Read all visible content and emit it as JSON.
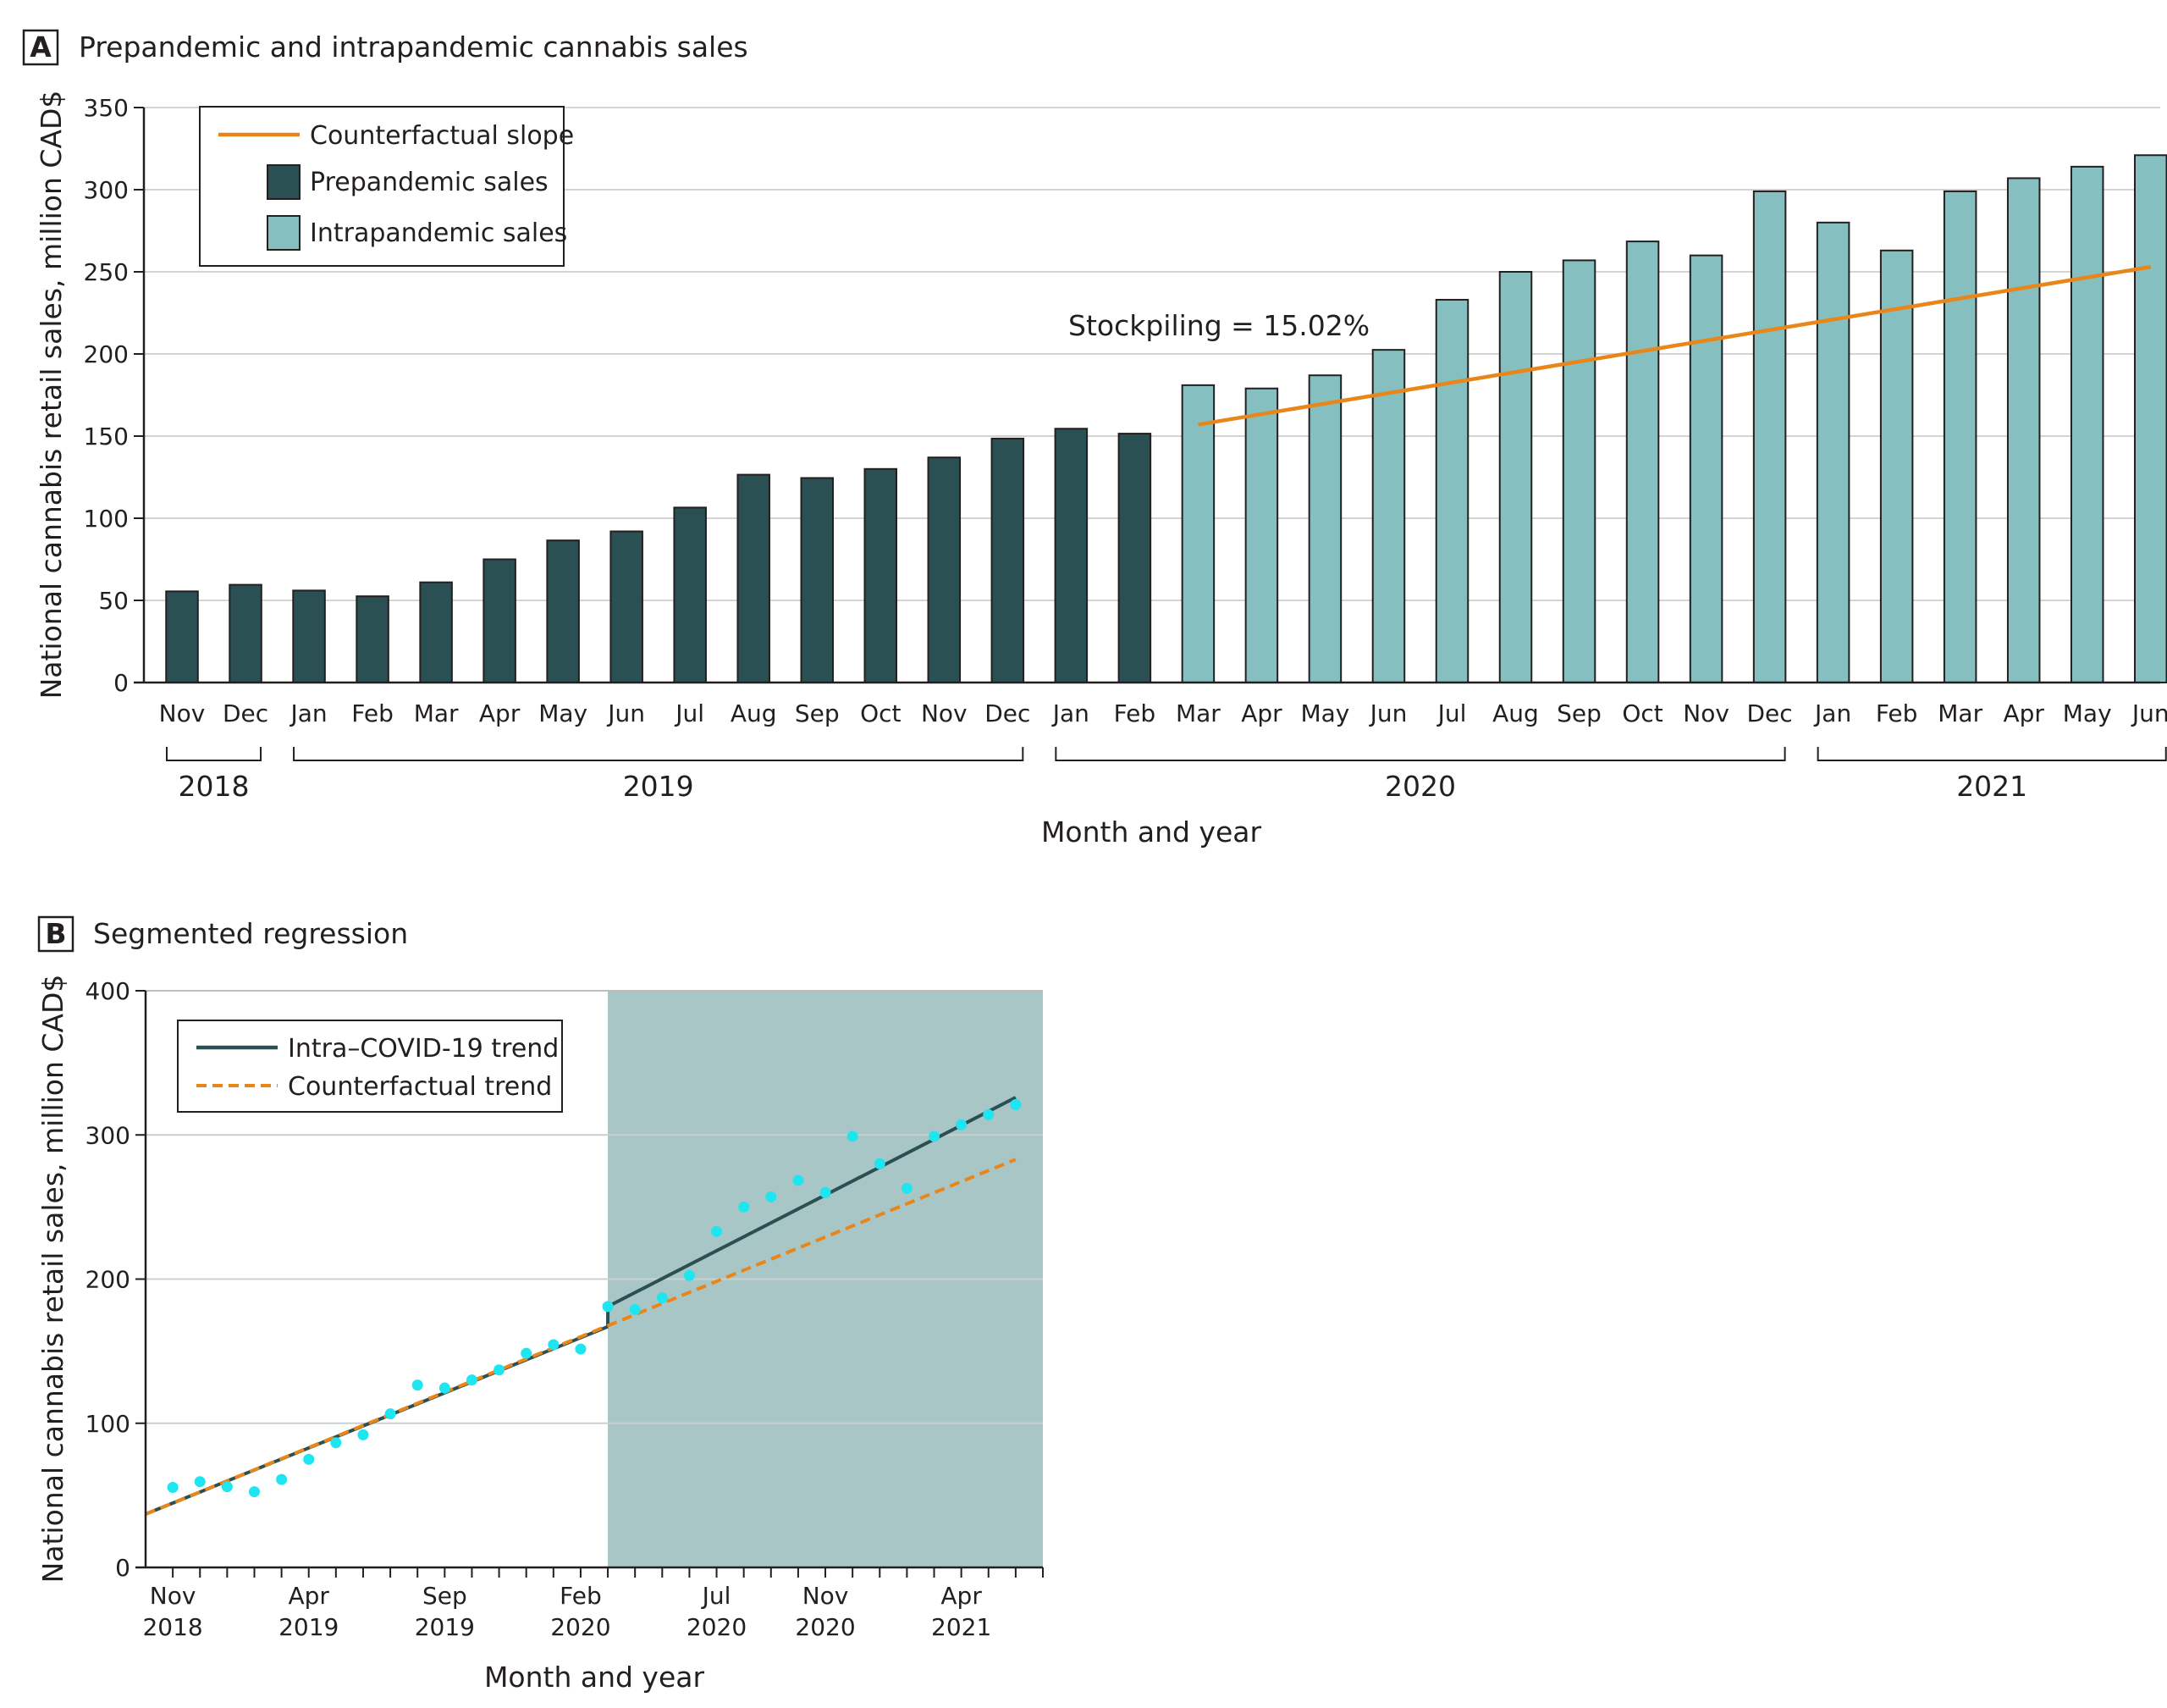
{
  "panel_a": {
    "letter": "A",
    "title": "Prepandemic and intrapandemic cannabis sales",
    "legend": {
      "counterfactual": "Counterfactual slope",
      "prepandemic": "Prepandemic sales",
      "intrapandemic": "Intrapandemic sales"
    },
    "annotation": "Stockpiling = 15.02%",
    "year_labels": [
      "2018",
      "2019",
      "2020",
      "2021"
    ],
    "colors": {
      "prepandemic": "#2a5054",
      "intrapandemic": "#86bfbf",
      "counterfactual": "#e8861a",
      "grid": "#d4d4d4"
    }
  },
  "panel_b": {
    "letter": "B",
    "title": "Segmented regression",
    "legend": {
      "intra": "Intra–COVID-19 trend",
      "counterfactual": "Counterfactual trend"
    },
    "colors": {
      "intra": "#2a5054",
      "counterfactual": "#e8861a",
      "points": "#1ee5f0",
      "shade": "#a9c6c7"
    }
  },
  "chart_data": [
    {
      "type": "bar",
      "title": "Prepandemic and intrapandemic cannabis sales",
      "xlabel": "Month and year",
      "ylabel": "National cannabis retail sales, million CAD$",
      "ylim": [
        0,
        350
      ],
      "yticks": [
        0,
        50,
        100,
        150,
        200,
        250,
        300,
        350
      ],
      "categories": [
        "Nov",
        "Dec",
        "Jan",
        "Feb",
        "Mar",
        "Apr",
        "May",
        "Jun",
        "Jul",
        "Aug",
        "Sep",
        "Oct",
        "Nov",
        "Dec",
        "Jan",
        "Feb",
        "Mar",
        "Apr",
        "May",
        "Jun",
        "Jul",
        "Aug",
        "Sep",
        "Oct",
        "Nov",
        "Dec",
        "Jan",
        "Feb",
        "Mar",
        "Apr",
        "May",
        "Jun"
      ],
      "years": [
        {
          "label": "2018",
          "start": 0,
          "end": 1
        },
        {
          "label": "2019",
          "start": 2,
          "end": 13
        },
        {
          "label": "2020",
          "start": 14,
          "end": 25
        },
        {
          "label": "2021",
          "start": 26,
          "end": 31
        }
      ],
      "values": [
        55.5,
        59.5,
        56,
        52.5,
        61,
        75,
        86.5,
        92,
        106.5,
        126.5,
        124.5,
        130,
        137,
        148.5,
        154.5,
        151.5,
        181,
        179,
        187,
        202.5,
        233,
        250,
        257,
        268.5,
        260,
        299,
        280,
        263,
        299,
        307,
        314,
        321
      ],
      "groups": [
        "pre",
        "pre",
        "pre",
        "pre",
        "pre",
        "pre",
        "pre",
        "pre",
        "pre",
        "pre",
        "pre",
        "pre",
        "pre",
        "pre",
        "pre",
        "pre",
        "intra",
        "intra",
        "intra",
        "intra",
        "intra",
        "intra",
        "intra",
        "intra",
        "intra",
        "intra",
        "intra",
        "intra",
        "intra",
        "intra",
        "intra",
        "intra"
      ],
      "counterfactual_line": {
        "from_index": 16,
        "to_index": 31,
        "from_value": 157,
        "to_value": 253
      },
      "annotation": "Stockpiling = 15.02%"
    },
    {
      "type": "scatter",
      "title": "Segmented regression",
      "xlabel": "Month and year",
      "ylabel": "National cannabis retail sales, million CAD$",
      "ylim": [
        0,
        400
      ],
      "yticks": [
        0,
        100,
        200,
        300,
        400
      ],
      "x_range": [
        -1,
        32
      ],
      "xtick_labels": [
        {
          "index": 0,
          "lines": [
            "Nov",
            "2018"
          ]
        },
        {
          "index": 5,
          "lines": [
            "Apr",
            "2019"
          ]
        },
        {
          "index": 10,
          "lines": [
            "Sep",
            "2019"
          ]
        },
        {
          "index": 15,
          "lines": [
            "Feb",
            "2020"
          ]
        },
        {
          "index": 20,
          "lines": [
            "Jul",
            "2020"
          ]
        },
        {
          "index": 24,
          "lines": [
            "Nov",
            "2020"
          ]
        },
        {
          "index": 29,
          "lines": [
            "Apr",
            "2021"
          ]
        }
      ],
      "points": [
        55.5,
        59.5,
        56,
        52.5,
        61,
        75,
        86.5,
        92,
        106.5,
        126.5,
        124.5,
        130,
        137,
        148.5,
        154.5,
        151.5,
        181,
        179,
        187,
        202.5,
        233,
        250,
        257,
        268.5,
        260,
        299,
        280,
        263,
        299,
        307,
        314,
        321
      ],
      "shaded_region": [
        16,
        31
      ],
      "pre_trend": {
        "x": [
          -1,
          16
        ],
        "y": [
          37,
          167
        ]
      },
      "intra_trend": {
        "x": [
          16,
          31
        ],
        "y": [
          181,
          326
        ]
      },
      "counterfactual_trend": {
        "x": [
          -1,
          31
        ],
        "y": [
          37,
          283
        ]
      },
      "legend": [
        "Intra–COVID-19 trend",
        "Counterfactual trend"
      ]
    }
  ]
}
